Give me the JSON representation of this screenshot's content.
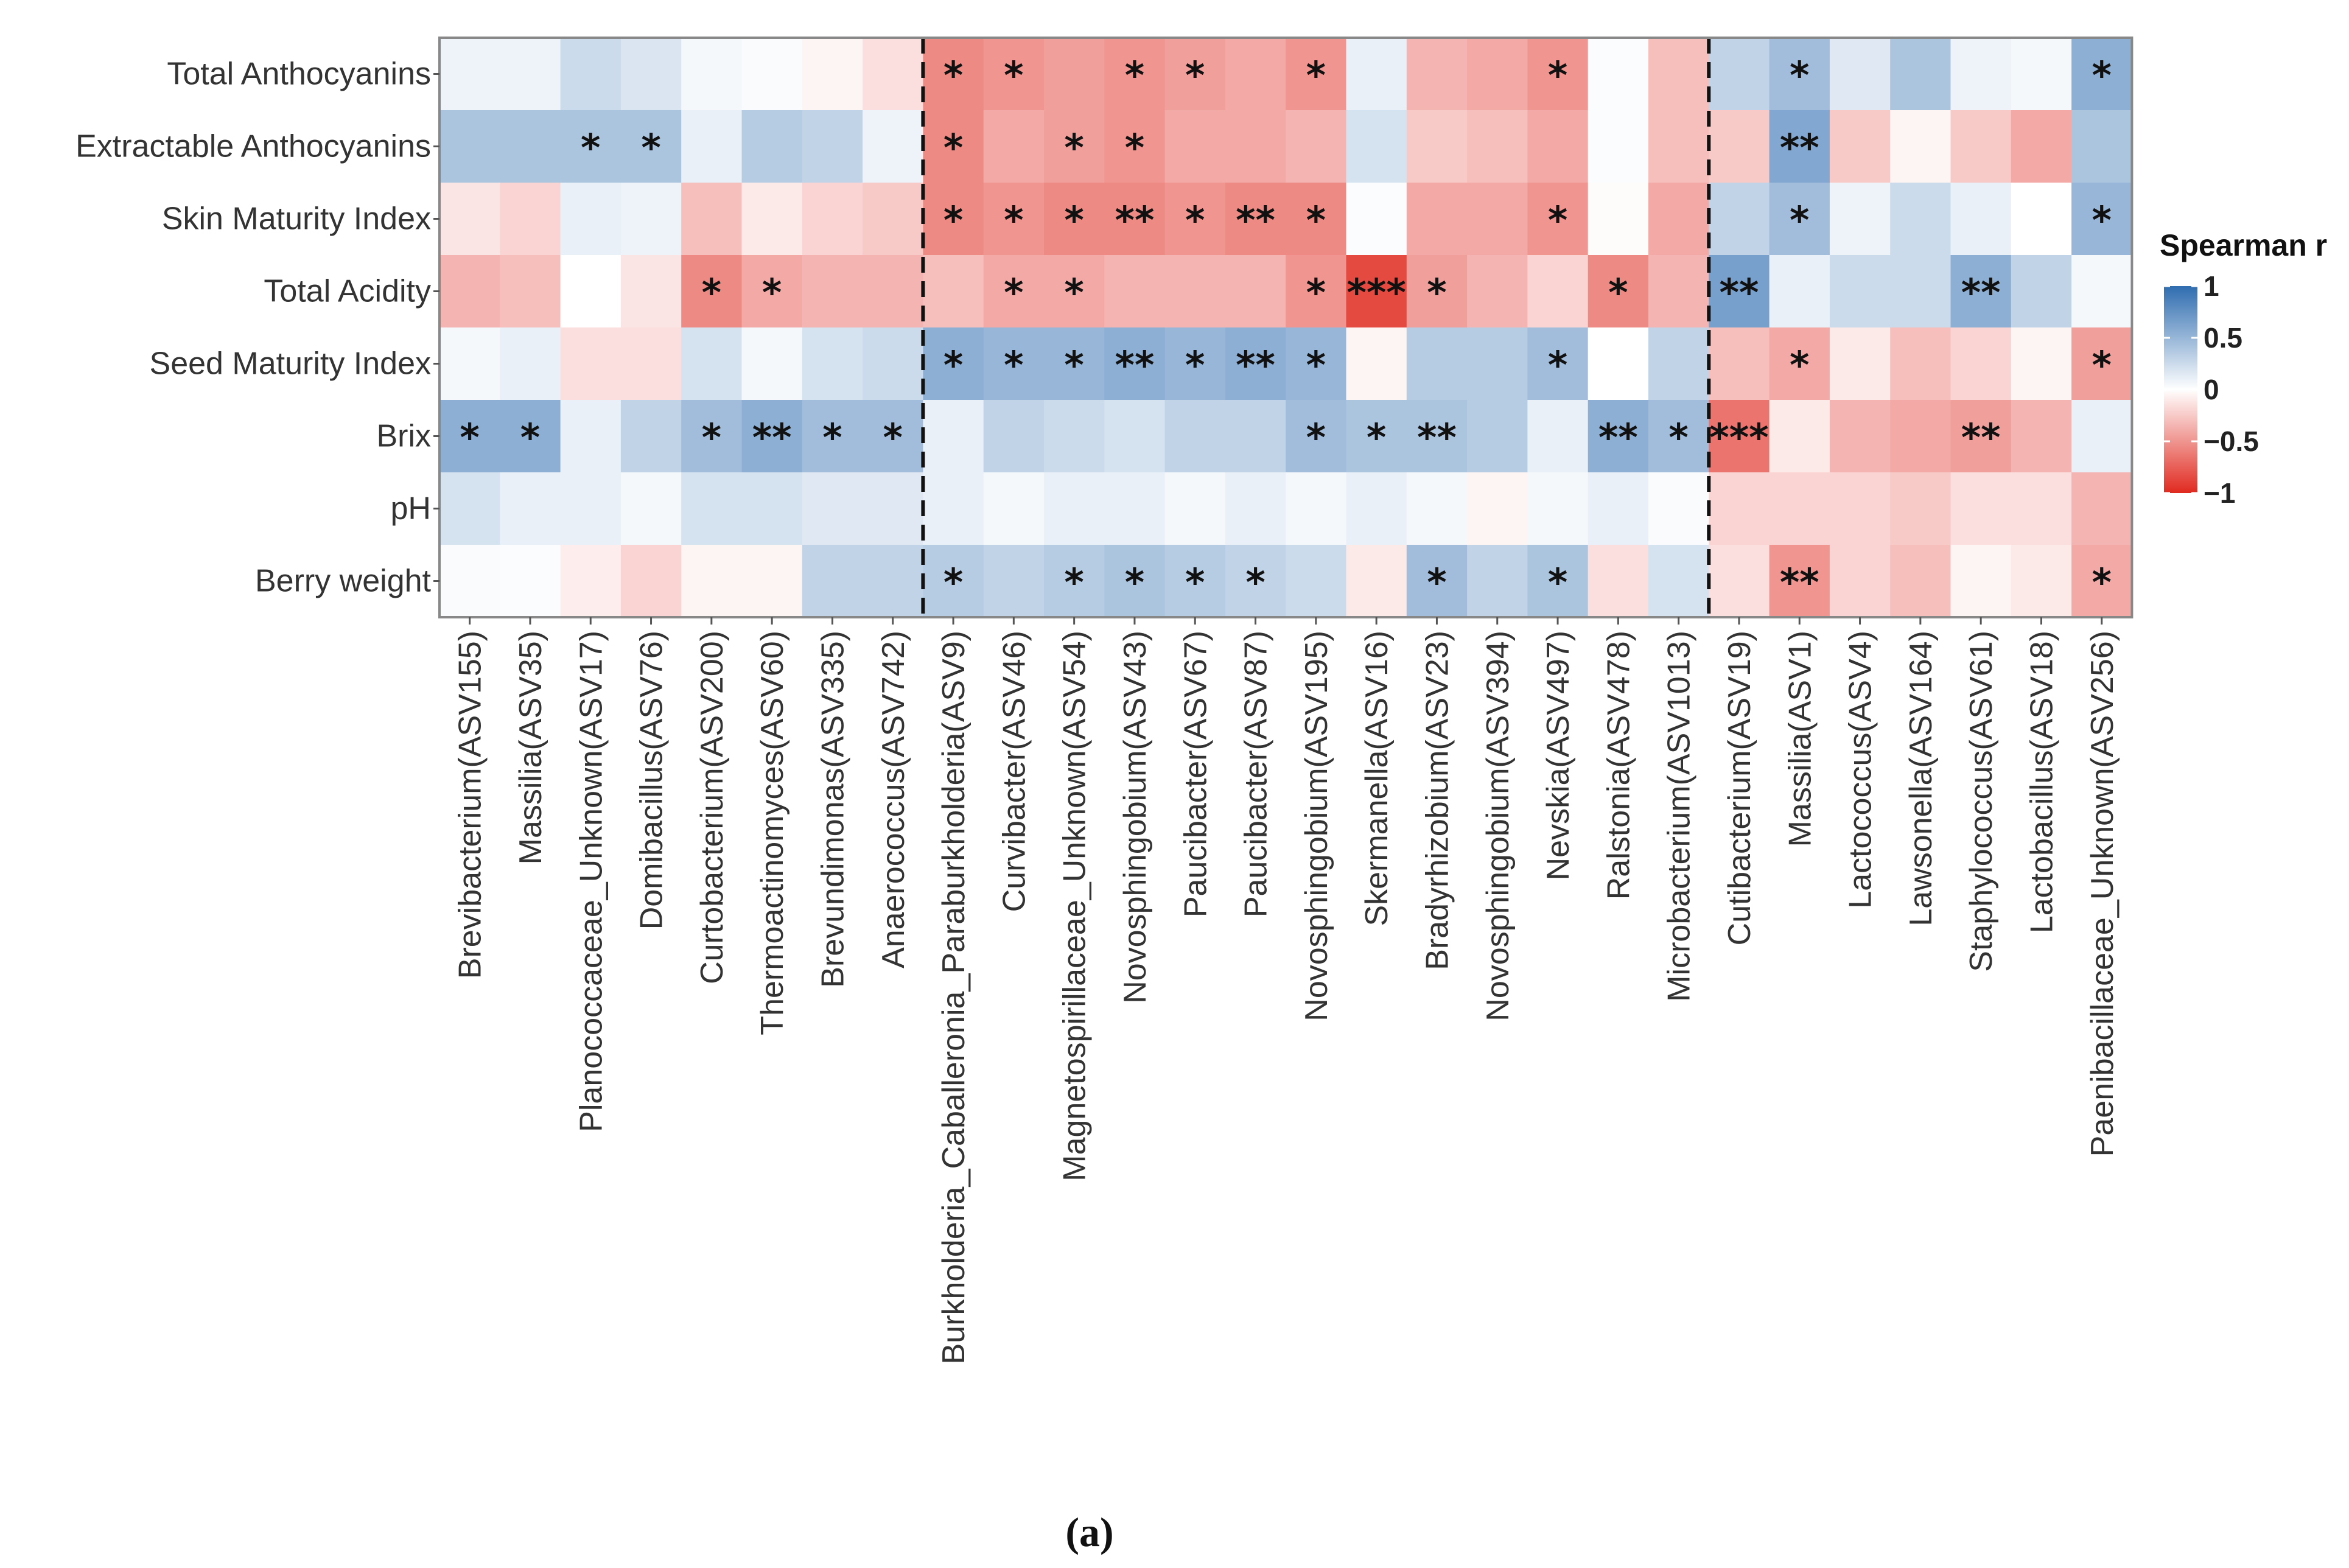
{
  "chart_data": {
    "type": "heatmap",
    "title": "",
    "panel_label": "(a)",
    "legend": {
      "title": "Spearman r",
      "ticks": [
        "1",
        "0.5",
        "0",
        "−0.5",
        "−1"
      ],
      "tick_values": [
        1,
        0.5,
        0,
        -0.5,
        -1
      ],
      "colors": {
        "high": "#2f6db0",
        "mid": "#ffffff",
        "low": "#e02a20"
      },
      "placement": "right"
    },
    "rows": [
      "Total Anthocyanins",
      "Extractable Anthocyanins",
      "Skin Maturity Index",
      "Total Acidity",
      "Seed Maturity Index",
      "Brix",
      "pH",
      "Berry weight"
    ],
    "columns": [
      "Brevibacterium(ASV155)",
      "Massilia(ASV35)",
      "Planococcaceae_Unknown(ASV17)",
      "Domibacillus(ASV76)",
      "Curtobacterium(ASV200)",
      "Thermoactinomyces(ASV60)",
      "Brevundimonas(ASV335)",
      "Anaerococcus(ASV742)",
      "Burkholderia_Caballeronia_Paraburkholderia(ASV9)",
      "Curvibacter(ASV46)",
      "Magnetospirillaceae_Unknown(ASV54)",
      "Novosphingobium(ASV43)",
      "Paucibacter(ASV67)",
      "Paucibacter(ASV87)",
      "Novosphingobium(ASV195)",
      "Skermanella(ASV16)",
      "Bradyrhizobium(ASV23)",
      "Novosphingobium(ASV394)",
      "Nevskia(ASV497)",
      "Ralstonia(ASV478)",
      "Microbacterium(ASV1013)",
      "Cutibacterium(ASV19)",
      "Massilia(ASV1)",
      "Lactococcus(ASV4)",
      "Lawsonella(ASV164)",
      "Staphylococcus(ASV61)",
      "Lactobacillus(ASV18)",
      "Paenibacillaceae_Unknown(ASV256)"
    ],
    "group_separators_after_column": [
      7,
      20
    ],
    "values": [
      [
        0.08,
        0.08,
        0.25,
        0.18,
        0.05,
        0.03,
        -0.05,
        -0.15,
        -0.55,
        -0.5,
        -0.45,
        -0.5,
        -0.45,
        -0.4,
        -0.5,
        0.1,
        -0.35,
        -0.4,
        -0.5,
        0.02,
        -0.3,
        0.3,
        0.45,
        0.15,
        0.4,
        0.08,
        0.05,
        0.55
      ],
      [
        0.4,
        0.4,
        0.4,
        0.4,
        0.1,
        0.35,
        0.3,
        0.08,
        -0.55,
        -0.4,
        -0.45,
        -0.5,
        -0.4,
        -0.4,
        -0.35,
        0.2,
        -0.25,
        -0.3,
        -0.4,
        0.02,
        -0.3,
        -0.25,
        0.6,
        -0.25,
        -0.05,
        -0.25,
        -0.4,
        0.4
      ],
      [
        -0.12,
        -0.2,
        0.1,
        0.08,
        -0.3,
        -0.1,
        -0.2,
        -0.25,
        -0.55,
        -0.5,
        -0.55,
        -0.55,
        -0.5,
        -0.55,
        -0.55,
        0.02,
        -0.4,
        -0.4,
        -0.5,
        -0.02,
        -0.4,
        0.3,
        0.45,
        0.08,
        0.25,
        0.1,
        0.0,
        0.5
      ],
      [
        -0.35,
        -0.3,
        0.0,
        -0.12,
        -0.55,
        -0.4,
        -0.35,
        -0.35,
        -0.3,
        -0.4,
        -0.4,
        -0.35,
        -0.35,
        -0.35,
        -0.5,
        -0.85,
        -0.45,
        -0.35,
        -0.2,
        -0.55,
        -0.35,
        0.65,
        0.1,
        0.25,
        0.25,
        0.55,
        0.3,
        0.05
      ],
      [
        0.05,
        0.1,
        -0.15,
        -0.15,
        0.2,
        0.05,
        0.2,
        0.25,
        0.55,
        0.5,
        0.5,
        0.55,
        0.5,
        0.55,
        0.5,
        -0.05,
        0.35,
        0.35,
        0.45,
        0.0,
        0.3,
        -0.3,
        -0.4,
        -0.1,
        -0.3,
        -0.2,
        -0.05,
        -0.45
      ],
      [
        0.55,
        0.55,
        0.1,
        0.3,
        0.45,
        0.55,
        0.45,
        0.45,
        0.1,
        0.3,
        0.25,
        0.2,
        0.3,
        0.3,
        0.45,
        0.4,
        0.4,
        0.35,
        0.1,
        0.55,
        0.45,
        -0.65,
        -0.1,
        -0.35,
        -0.4,
        -0.45,
        -0.35,
        0.1
      ],
      [
        0.2,
        0.1,
        0.1,
        0.05,
        0.2,
        0.2,
        0.15,
        0.15,
        0.1,
        0.05,
        0.1,
        0.1,
        0.05,
        0.1,
        0.05,
        0.1,
        0.05,
        -0.05,
        0.05,
        0.1,
        0.03,
        -0.2,
        -0.2,
        -0.2,
        -0.25,
        -0.15,
        -0.15,
        -0.35
      ],
      [
        0.03,
        0.02,
        -0.08,
        -0.2,
        -0.05,
        -0.05,
        0.3,
        0.3,
        0.35,
        0.3,
        0.35,
        0.4,
        0.35,
        0.3,
        0.25,
        -0.1,
        0.45,
        0.3,
        0.4,
        -0.15,
        0.2,
        -0.15,
        -0.5,
        -0.2,
        -0.3,
        -0.05,
        -0.1,
        -0.4
      ]
    ],
    "significance": [
      [
        "",
        "",
        "",
        "",
        "",
        "",
        "",
        "",
        "*",
        "*",
        "",
        "*",
        "*",
        "",
        "*",
        "",
        "",
        "",
        "*",
        "",
        "",
        "",
        "*",
        "",
        "",
        "",
        "",
        "*"
      ],
      [
        "",
        "",
        "*",
        "*",
        "",
        "",
        "",
        "",
        "*",
        "",
        "*",
        "*",
        "",
        "",
        "",
        "",
        "",
        "",
        "",
        "",
        "",
        "",
        "**",
        "",
        "",
        "",
        "",
        ""
      ],
      [
        "",
        "",
        "",
        "",
        "",
        "",
        "",
        "",
        "*",
        "*",
        "*",
        "**",
        "*",
        "**",
        "*",
        "",
        "",
        "",
        "*",
        "",
        "",
        "",
        "*",
        "",
        "",
        "",
        "",
        "*"
      ],
      [
        "",
        "",
        "",
        "",
        "*",
        "*",
        "",
        "",
        "",
        "*",
        "*",
        "",
        "",
        "",
        "*",
        "***",
        "*",
        "",
        "",
        "*",
        "",
        "**",
        "",
        "",
        "",
        "**",
        "",
        ""
      ],
      [
        "",
        "",
        "",
        "",
        "",
        "",
        "",
        "",
        "*",
        "*",
        "*",
        "**",
        "*",
        "**",
        "*",
        "",
        "",
        "",
        "*",
        "",
        "",
        "",
        "*",
        "",
        "",
        "",
        "",
        "*"
      ],
      [
        "*",
        "*",
        "",
        "",
        "*",
        "**",
        "*",
        "*",
        "",
        "",
        "",
        "",
        "",
        "",
        "*",
        "*",
        "**",
        "",
        "",
        "**",
        "*",
        "***",
        "",
        "",
        "",
        "**",
        "",
        ""
      ],
      [
        "",
        "",
        "",
        "",
        "",
        "",
        "",
        "",
        "",
        "",
        "",
        "",
        "",
        "",
        "",
        "",
        "",
        "",
        "",
        "",
        "",
        "",
        "",
        "",
        "",
        "",
        "",
        ""
      ],
      [
        "",
        "",
        "",
        "",
        "",
        "",
        "",
        "",
        "*",
        "",
        "*",
        "*",
        "*",
        "*",
        "",
        "",
        "*",
        "",
        "*",
        "",
        "",
        "",
        "**",
        "",
        "",
        "",
        "",
        "*"
      ]
    ]
  }
}
